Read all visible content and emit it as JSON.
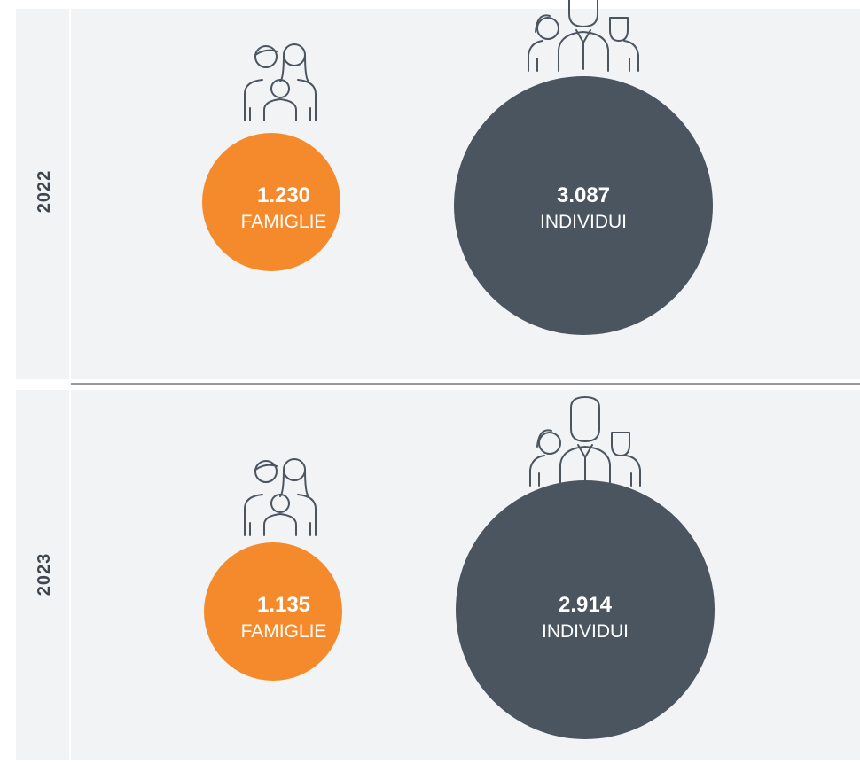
{
  "panels": [
    {
      "year": "2022",
      "items": [
        {
          "value": "1.230",
          "label": "FAMIGLIE"
        },
        {
          "value": "3.087",
          "label": "INDIVIDUI"
        }
      ]
    },
    {
      "year": "2023",
      "items": [
        {
          "value": "1.135",
          "label": "FAMIGLIE"
        },
        {
          "value": "2.914",
          "label": "INDIVIDUI"
        }
      ]
    }
  ]
}
